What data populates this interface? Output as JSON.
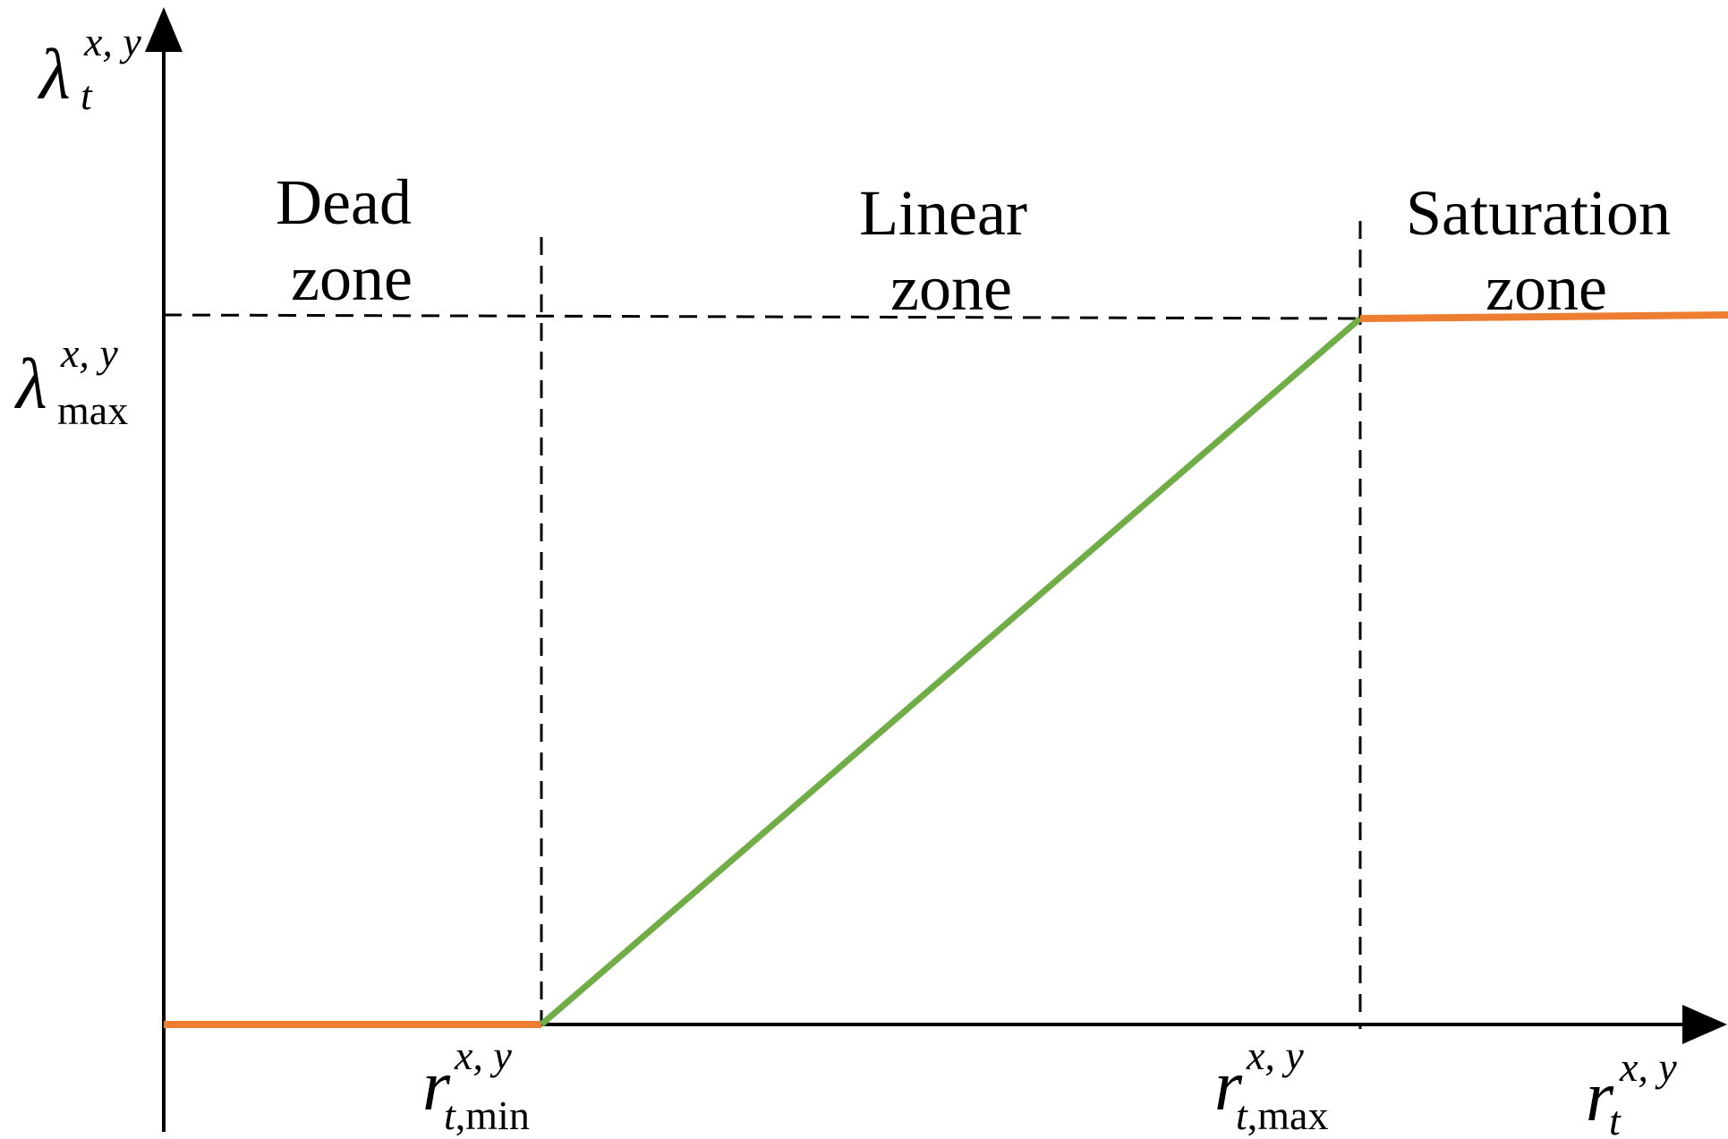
{
  "zones": {
    "dead": [
      "Dead",
      "zone"
    ],
    "linear": [
      "Linear",
      "zone"
    ],
    "saturation": [
      "Saturation",
      "zone"
    ]
  },
  "y_axis_label": {
    "base": "λ",
    "sup": "x, y",
    "sub": "t"
  },
  "y_max_label": {
    "base": "λ",
    "sup": "x, y",
    "sub": "max"
  },
  "x_min_label": {
    "base": "r",
    "sup": "x, y",
    "sub_italic": "t",
    "sub_rest": ",min"
  },
  "x_max_label": {
    "base": "r",
    "sup": "x, y",
    "sub_italic": "t",
    "sub_rest": ",max"
  },
  "x_axis_label": {
    "base": "r",
    "sup": "x, y",
    "sub": "t"
  },
  "colors": {
    "axis": "#000000",
    "guide": "#000000",
    "constant_segment": "#ED7D31",
    "linear_segment": "#70AD47"
  }
}
